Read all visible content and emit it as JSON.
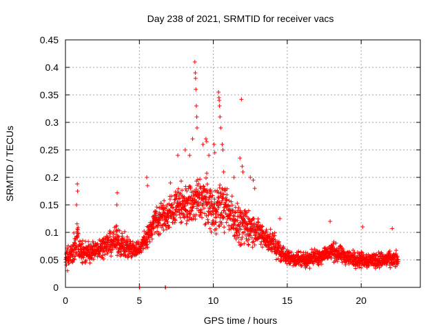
{
  "chart_data": {
    "type": "scatter",
    "title": "Day 238 of 2021, SRMTID for receiver vacs",
    "xlabel": "GPS time / hours",
    "ylabel": "SRMTID / TECUs",
    "xlim": [
      0,
      24
    ],
    "ylim": [
      0,
      0.45
    ],
    "xticks": [
      0,
      5,
      10,
      15,
      20
    ],
    "xtick_labels": [
      "0",
      "5",
      "10",
      "15",
      "20"
    ],
    "yticks": [
      0,
      0.05,
      0.1,
      0.15,
      0.2,
      0.25,
      0.3,
      0.35,
      0.4,
      0.45
    ],
    "ytick_labels": [
      "0",
      "0.05",
      "0.1",
      "0.15",
      "0.2",
      "0.25",
      "0.3",
      "0.35",
      "0.4",
      "0.45"
    ],
    "grid": true,
    "marker": "+",
    "series": [
      {
        "name": "vacs",
        "color": "#ff0000",
        "envelope": [
          [
            0.0,
            0.055,
            0.03
          ],
          [
            0.5,
            0.06,
            0.03
          ],
          [
            0.8,
            0.09,
            0.045
          ],
          [
            1.0,
            0.065,
            0.03
          ],
          [
            1.5,
            0.06,
            0.025
          ],
          [
            2.0,
            0.07,
            0.025
          ],
          [
            2.5,
            0.075,
            0.025
          ],
          [
            3.0,
            0.08,
            0.03
          ],
          [
            3.5,
            0.085,
            0.035
          ],
          [
            4.0,
            0.075,
            0.03
          ],
          [
            4.5,
            0.07,
            0.025
          ],
          [
            5.0,
            0.07,
            0.02
          ],
          [
            5.5,
            0.09,
            0.03
          ],
          [
            6.0,
            0.12,
            0.035
          ],
          [
            6.5,
            0.13,
            0.04
          ],
          [
            7.0,
            0.13,
            0.045
          ],
          [
            7.5,
            0.15,
            0.045
          ],
          [
            8.0,
            0.15,
            0.05
          ],
          [
            8.5,
            0.15,
            0.055
          ],
          [
            9.0,
            0.16,
            0.06
          ],
          [
            9.5,
            0.16,
            0.06
          ],
          [
            10.0,
            0.14,
            0.06
          ],
          [
            10.5,
            0.15,
            0.06
          ],
          [
            11.0,
            0.14,
            0.055
          ],
          [
            11.5,
            0.12,
            0.05
          ],
          [
            12.0,
            0.11,
            0.05
          ],
          [
            12.5,
            0.11,
            0.045
          ],
          [
            13.0,
            0.1,
            0.035
          ],
          [
            13.5,
            0.09,
            0.03
          ],
          [
            14.0,
            0.08,
            0.03
          ],
          [
            14.5,
            0.065,
            0.025
          ],
          [
            15.0,
            0.055,
            0.02
          ],
          [
            16.0,
            0.05,
            0.02
          ],
          [
            17.0,
            0.055,
            0.02
          ],
          [
            18.0,
            0.065,
            0.025
          ],
          [
            19.0,
            0.055,
            0.02
          ],
          [
            20.0,
            0.05,
            0.02
          ],
          [
            21.0,
            0.05,
            0.02
          ],
          [
            22.0,
            0.05,
            0.02
          ],
          [
            22.5,
            0.05,
            0.02
          ]
        ],
        "n_points": 2250,
        "outliers": [
          [
            0.8,
            0.188
          ],
          [
            0.82,
            0.175
          ],
          [
            0.75,
            0.15
          ],
          [
            3.5,
            0.172
          ],
          [
            3.48,
            0.15
          ],
          [
            5.5,
            0.2
          ],
          [
            5.55,
            0.185
          ],
          [
            7.1,
            0.19
          ],
          [
            7.6,
            0.24
          ],
          [
            8.1,
            0.25
          ],
          [
            8.4,
            0.24
          ],
          [
            8.6,
            0.27
          ],
          [
            8.75,
            0.41
          ],
          [
            8.78,
            0.39
          ],
          [
            8.8,
            0.38
          ],
          [
            8.82,
            0.36
          ],
          [
            8.85,
            0.33
          ],
          [
            8.88,
            0.31
          ],
          [
            8.9,
            0.29
          ],
          [
            9.3,
            0.26
          ],
          [
            9.5,
            0.27
          ],
          [
            9.55,
            0.265
          ],
          [
            9.7,
            0.24
          ],
          [
            10.05,
            0.26
          ],
          [
            10.1,
            0.245
          ],
          [
            10.35,
            0.355
          ],
          [
            10.38,
            0.345
          ],
          [
            10.4,
            0.34
          ],
          [
            10.42,
            0.33
          ],
          [
            10.45,
            0.31
          ],
          [
            10.5,
            0.29
          ],
          [
            10.6,
            0.26
          ],
          [
            10.65,
            0.25
          ],
          [
            10.7,
            0.21
          ],
          [
            11.4,
            0.2
          ],
          [
            11.8,
            0.235
          ],
          [
            11.9,
            0.342
          ],
          [
            11.95,
            0.22
          ],
          [
            12.0,
            0.21
          ],
          [
            12.5,
            0.2
          ],
          [
            12.7,
            0.195
          ],
          [
            12.8,
            0.18
          ],
          [
            14.5,
            0.125
          ],
          [
            17.9,
            0.12
          ],
          [
            20.1,
            0.11
          ],
          [
            22.1,
            0.107
          ]
        ],
        "zero_points": [
          [
            5.0,
            0.0
          ],
          [
            6.75,
            0.0
          ]
        ]
      }
    ]
  }
}
